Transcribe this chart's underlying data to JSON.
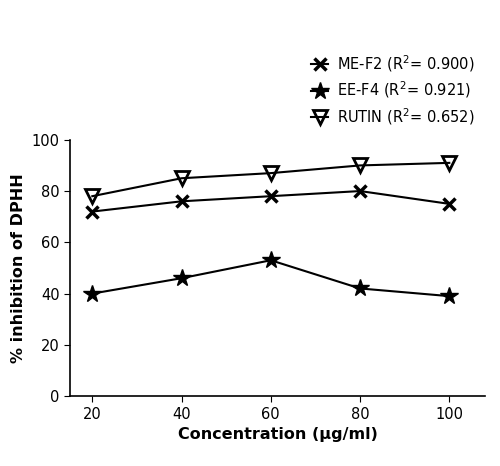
{
  "x": [
    20,
    40,
    60,
    80,
    100
  ],
  "ME_F2": [
    72,
    76,
    78,
    80,
    75
  ],
  "EE_F4": [
    40,
    46,
    53,
    42,
    39
  ],
  "RUTIN": [
    78,
    85,
    87,
    90,
    91
  ],
  "ME_F2_label": "ME-F2 (R$^2$= 0.900)",
  "EE_F4_label": "EE-F4 (R$^2$= 0.921)",
  "RUTIN_label": "RUTIN (R$^2$= 0.652)",
  "xlabel": "Concentration (µg/ml)",
  "ylabel": "% inhibition of DPHH",
  "ylim": [
    0,
    100
  ],
  "xlim": [
    15,
    108
  ],
  "yticks": [
    0,
    20,
    40,
    60,
    80,
    100
  ],
  "xticks": [
    20,
    40,
    60,
    80,
    100
  ],
  "line_color": "#000000",
  "bg_color": "#ffffff",
  "legend_fontsize": 10.5,
  "axis_label_fontsize": 11.5,
  "tick_fontsize": 10.5
}
